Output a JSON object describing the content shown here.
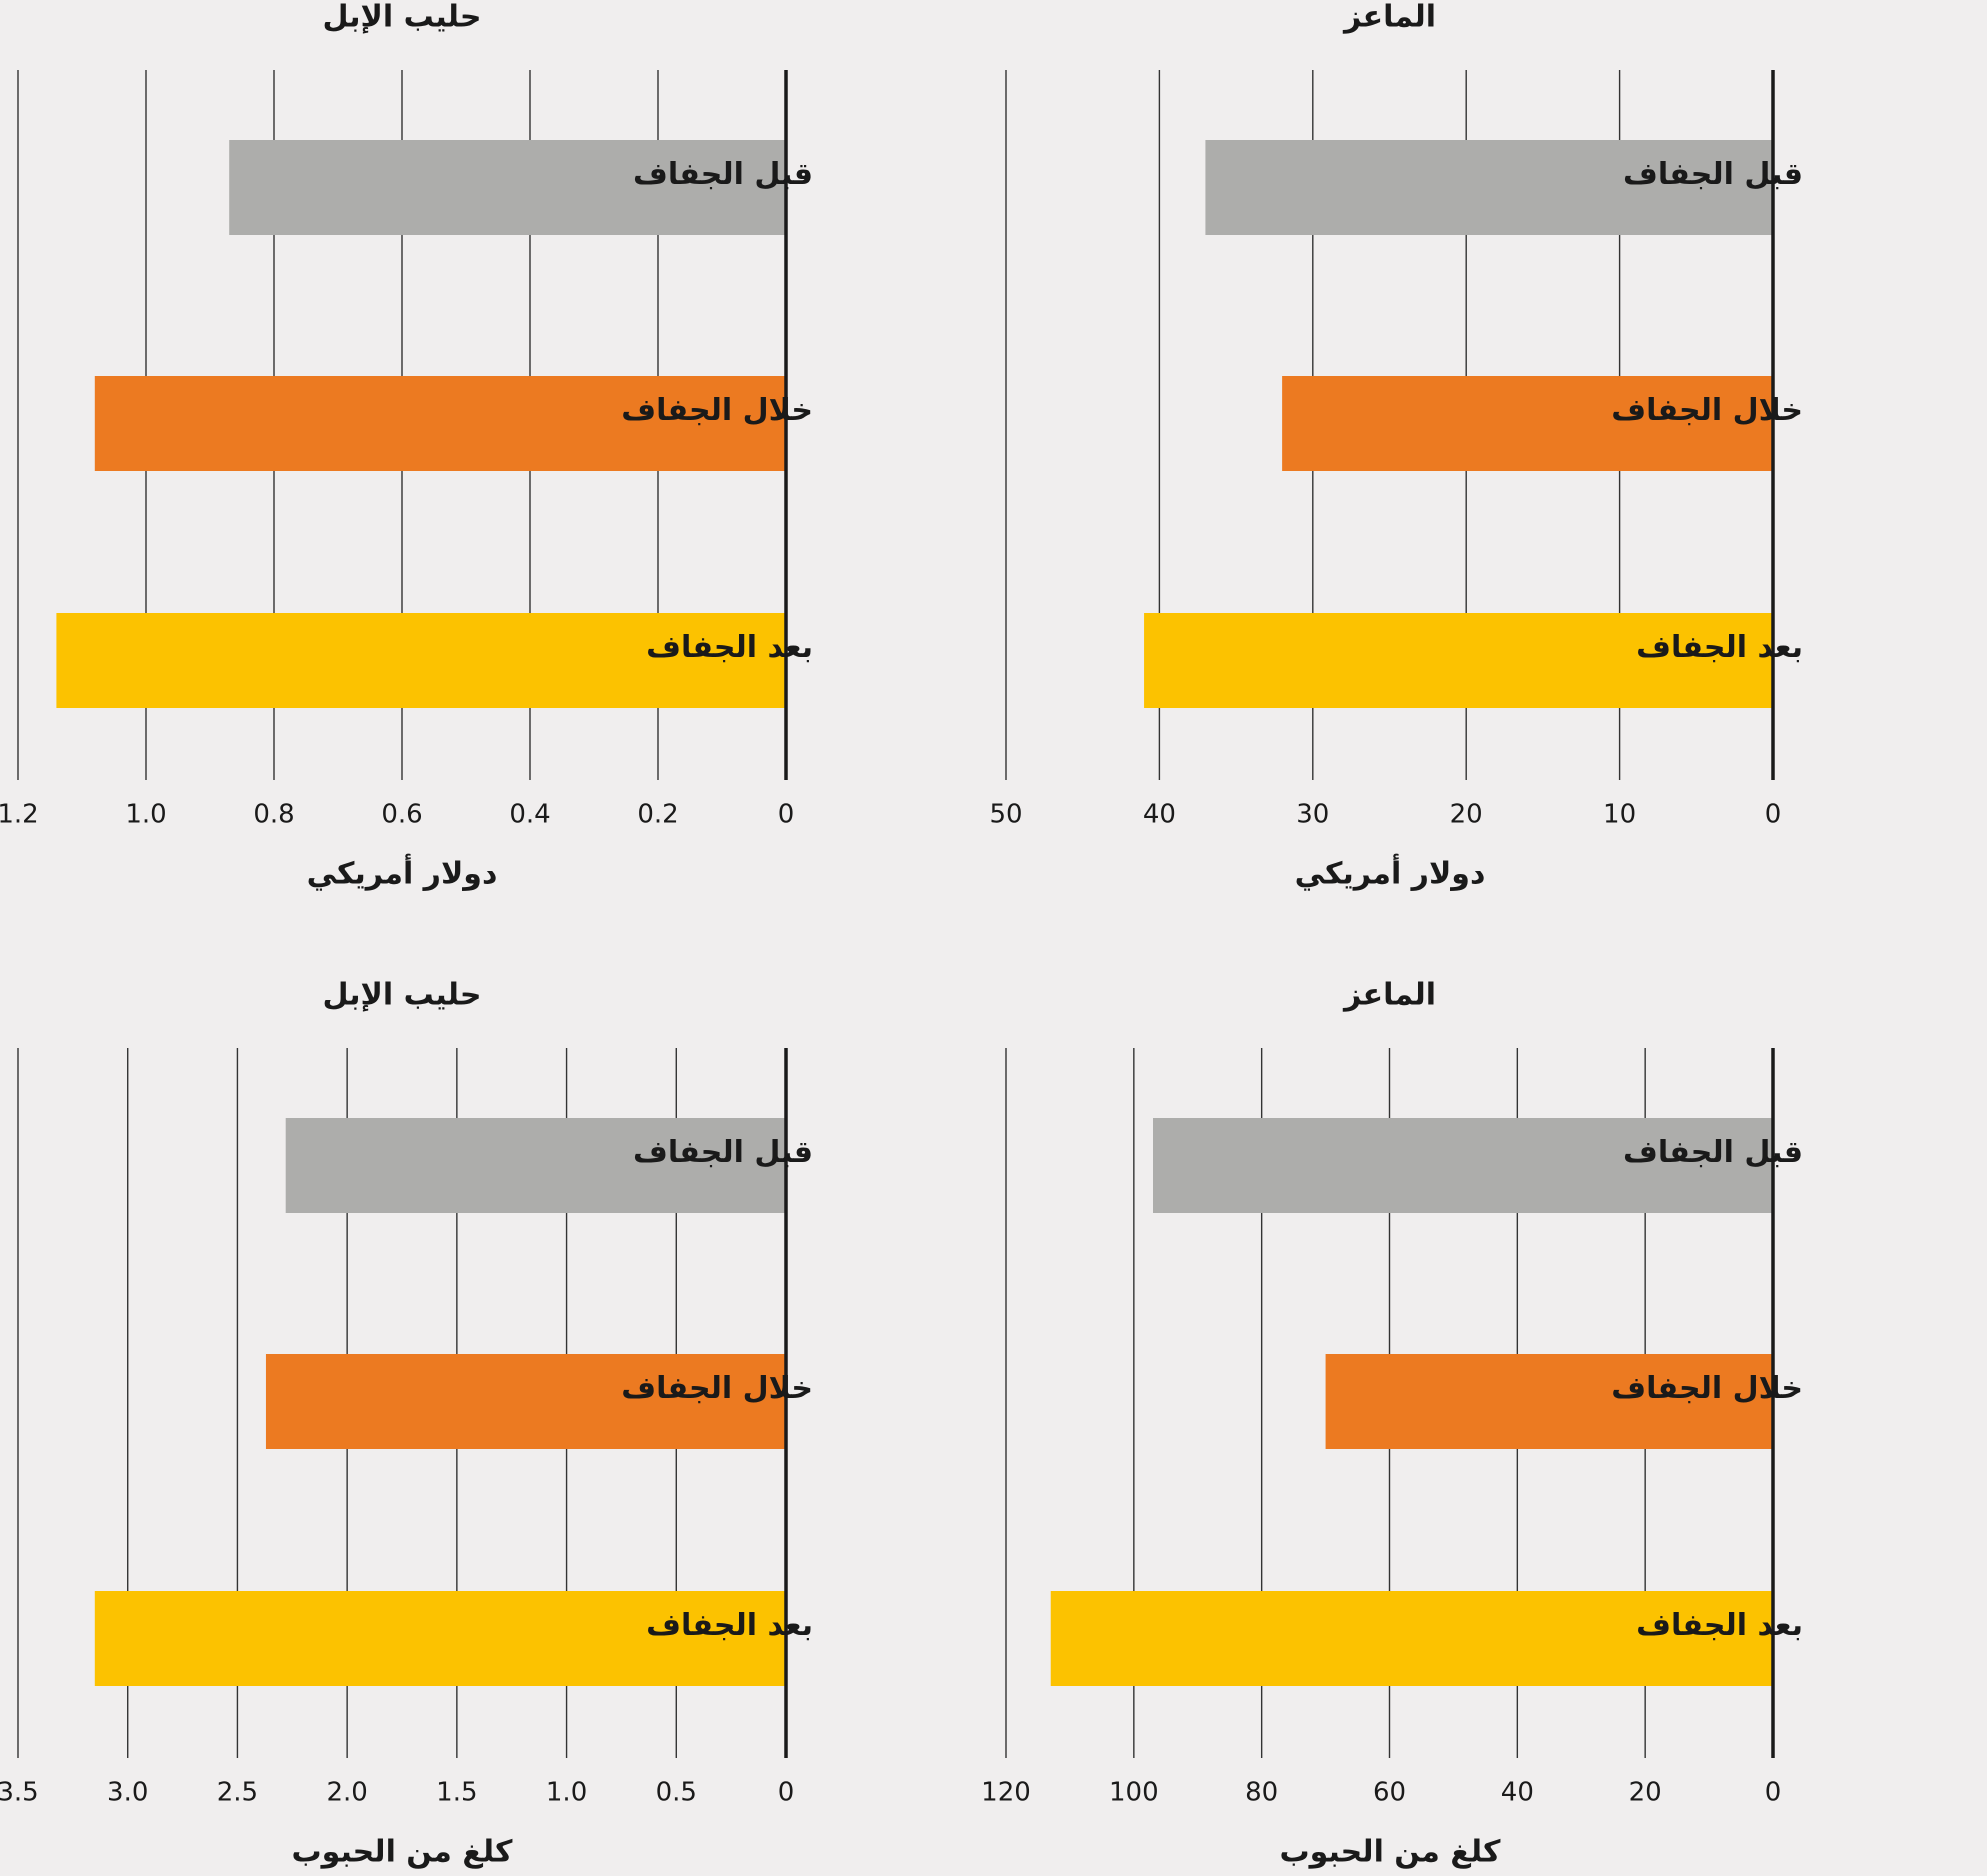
{
  "colors": {
    "background": "#f0eeee",
    "gridline": "#333333",
    "axis": "#1a1a1a",
    "text": "#1a1a1a",
    "before": "#adadab",
    "during": "#ec7a21",
    "after": "#fcc200"
  },
  "chart_data": [
    {
      "type": "bar",
      "orientation": "horizontal",
      "title": "الماعز",
      "xlabel": "دولار أمريكي",
      "categories": [
        "قبل الجفاف",
        "خلال الجفاف",
        "بعد الجفاف"
      ],
      "values": [
        37,
        32,
        41
      ],
      "xlim": [
        0,
        50
      ],
      "xticks": [
        0,
        10,
        20,
        30,
        40,
        50
      ],
      "tick_labels": [
        "0",
        "10",
        "20",
        "30",
        "40",
        "50"
      ],
      "bar_colors": [
        "#adadab",
        "#ec7a21",
        "#fcc200"
      ],
      "grid": true,
      "direction": "right-to-left"
    },
    {
      "type": "bar",
      "orientation": "horizontal",
      "title": "حليب الإبل",
      "xlabel": "دولار أمريكي",
      "categories": [
        "قبل الجفاف",
        "خلال الجفاف",
        "بعد الجفاف"
      ],
      "values": [
        0.87,
        1.08,
        1.14
      ],
      "xlim": [
        0,
        1.2
      ],
      "xticks": [
        0,
        0.2,
        0.4,
        0.6,
        0.8,
        1.0,
        1.2
      ],
      "tick_labels": [
        "0",
        "0.2",
        "0.4",
        "0.6",
        "0.8",
        "1.0",
        "1.2"
      ],
      "bar_colors": [
        "#adadab",
        "#ec7a21",
        "#fcc200"
      ],
      "grid": true,
      "direction": "right-to-left"
    },
    {
      "type": "bar",
      "orientation": "horizontal",
      "title": "الماعز",
      "xlabel": "كلغ من الحبوب",
      "categories": [
        "قبل الجفاف",
        "خلال الجفاف",
        "بعد الجفاف"
      ],
      "values": [
        97,
        70,
        113
      ],
      "xlim": [
        0,
        120
      ],
      "xticks": [
        0,
        20,
        40,
        60,
        80,
        100,
        120
      ],
      "tick_labels": [
        "0",
        "20",
        "40",
        "60",
        "80",
        "100",
        "120"
      ],
      "bar_colors": [
        "#adadab",
        "#ec7a21",
        "#fcc200"
      ],
      "grid": true,
      "direction": "right-to-left"
    },
    {
      "type": "bar",
      "orientation": "horizontal",
      "title": "حليب الإبل",
      "xlabel": "كلغ من الحبوب",
      "categories": [
        "قبل الجفاف",
        "خلال الجفاف",
        "بعد الجفاف"
      ],
      "values": [
        2.28,
        2.37,
        3.15
      ],
      "xlim": [
        0,
        3.5
      ],
      "xticks": [
        0,
        0.5,
        1.0,
        1.5,
        2.0,
        2.5,
        3.0,
        3.5
      ],
      "tick_labels": [
        "0",
        "0.5",
        "1.0",
        "1.5",
        "2.0",
        "2.5",
        "3.0",
        "3.5"
      ],
      "bar_colors": [
        "#adadab",
        "#ec7a21",
        "#fcc200"
      ],
      "grid": true,
      "direction": "right-to-left"
    }
  ]
}
